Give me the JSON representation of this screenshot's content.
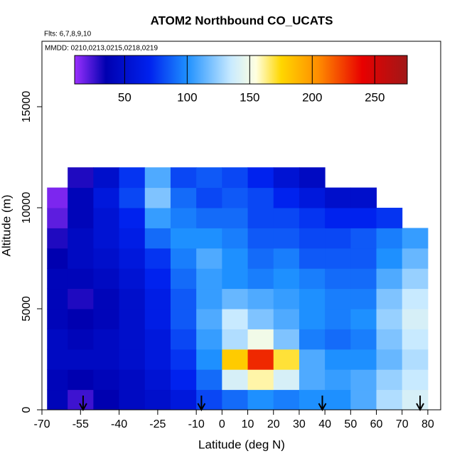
{
  "chart_data": {
    "type": "heatmap",
    "title": "ATOM2 Northbound CO_UCATS",
    "subtitle": "Flts: 6,7,8,9,10",
    "annotation": "MMDD: 0210,0213,0215,0218,0219",
    "x_label": "Latitude (deg N)",
    "y_label": "Altitude (m)",
    "xlim": [
      -70,
      85
    ],
    "ylim": [
      0,
      18240
    ],
    "xticks": [
      -70,
      -55,
      -40,
      -25,
      -10,
      0,
      10,
      20,
      30,
      40,
      50,
      60,
      70,
      80
    ],
    "yticks": [
      0,
      5000,
      10000,
      15000
    ],
    "x_bins": [
      -68,
      -60,
      -50,
      -40,
      -30,
      -20,
      -10,
      0,
      10,
      20,
      30,
      40,
      50,
      60,
      70,
      80
    ],
    "y_bins": [
      0,
      1000,
      2000,
      3000,
      4000,
      5000,
      6000,
      7000,
      8000,
      9000,
      10000,
      11000,
      12000
    ],
    "values": [
      [
        40,
        25,
        35,
        45,
        50,
        60,
        80,
        90,
        100,
        95,
        100,
        100,
        110,
        130,
        140
      ],
      [
        40,
        35,
        40,
        45,
        55,
        70,
        90,
        140,
        160,
        140,
        110,
        105,
        110,
        125,
        135
      ],
      [
        45,
        45,
        45,
        50,
        60,
        75,
        100,
        180,
        230,
        170,
        110,
        100,
        100,
        115,
        130
      ],
      [
        45,
        40,
        45,
        50,
        60,
        80,
        105,
        130,
        150,
        120,
        95,
        90,
        95,
        120,
        135
      ],
      [
        40,
        35,
        40,
        50,
        65,
        85,
        110,
        135,
        120,
        110,
        100,
        95,
        100,
        125,
        140
      ],
      [
        40,
        30,
        40,
        50,
        65,
        85,
        105,
        115,
        110,
        105,
        100,
        95,
        95,
        120,
        135
      ],
      [
        40,
        40,
        45,
        55,
        70,
        90,
        105,
        100,
        95,
        100,
        95,
        90,
        90,
        110,
        125
      ],
      [
        35,
        45,
        50,
        60,
        75,
        95,
        110,
        100,
        90,
        95,
        85,
        85,
        85,
        100,
        115
      ],
      [
        30,
        45,
        55,
        65,
        90,
        100,
        100,
        95,
        85,
        85,
        80,
        80,
        85,
        95,
        105
      ],
      [
        20,
        40,
        55,
        70,
        105,
        95,
        90,
        90,
        80,
        80,
        75,
        70,
        70,
        75,
        null
      ],
      [
        15,
        40,
        60,
        80,
        120,
        90,
        80,
        85,
        80,
        70,
        60,
        50,
        50,
        null,
        null
      ],
      [
        null,
        30,
        50,
        75,
        110,
        80,
        85,
        80,
        70,
        55,
        45,
        null,
        null,
        null,
        null
      ]
    ],
    "zlim": [
      10,
      276
    ],
    "zticks": [
      50,
      100,
      150,
      200,
      250
    ],
    "colorscale": [
      [
        10,
        "#9b30ff"
      ],
      [
        35,
        "#0000b0"
      ],
      [
        70,
        "#0022ee"
      ],
      [
        100,
        "#1e90ff"
      ],
      [
        135,
        "#c8eaff"
      ],
      [
        155,
        "#ffffe0"
      ],
      [
        175,
        "#ffd700"
      ],
      [
        205,
        "#ff8c00"
      ],
      [
        240,
        "#e80000"
      ],
      [
        276,
        "#a01818"
      ]
    ],
    "markers": [
      -54,
      -8,
      39,
      77
    ]
  }
}
